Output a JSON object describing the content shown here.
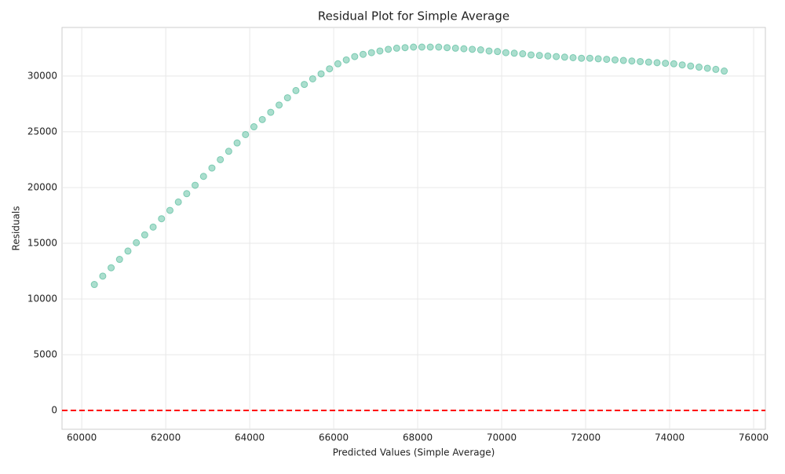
{
  "chart_data": {
    "type": "scatter",
    "title": "Residual Plot for Simple Average",
    "x_label": "Predicted Values (Simple Average)",
    "y_label": "Residuals",
    "color": "#66c2a5",
    "grid": true,
    "xlim": [
      59530,
      76280
    ],
    "ylim": [
      -1690,
      34360
    ],
    "xticks": [
      60000,
      62000,
      64000,
      66000,
      68000,
      70000,
      72000,
      74000,
      76000
    ],
    "yticks": [
      0,
      5000,
      10000,
      15000,
      20000,
      25000,
      30000
    ],
    "hline": {
      "y": 0,
      "color": "#ff0000",
      "style": "dashed"
    },
    "x": [
      60300,
      60500,
      60700,
      60900,
      61100,
      61300,
      61500,
      61700,
      61900,
      62100,
      62300,
      62500,
      62700,
      62900,
      63100,
      63300,
      63500,
      63700,
      63900,
      64100,
      64300,
      64500,
      64700,
      64900,
      65100,
      65300,
      65500,
      65700,
      65900,
      66100,
      66300,
      66500,
      66700,
      66900,
      67100,
      67300,
      67500,
      67700,
      67900,
      68100,
      68300,
      68500,
      68700,
      68900,
      69100,
      69300,
      69500,
      69700,
      69900,
      70100,
      70300,
      70500,
      70700,
      70900,
      71100,
      71300,
      71500,
      71700,
      71900,
      72100,
      72300,
      72500,
      72700,
      72900,
      73100,
      73300,
      73500,
      73700,
      73900,
      74100,
      74300,
      74500,
      74700,
      74900,
      75100,
      75300
    ],
    "values": [
      11300,
      12050,
      12800,
      13550,
      14300,
      15050,
      15750,
      16450,
      17200,
      17950,
      18700,
      19450,
      20200,
      21000,
      21750,
      22500,
      23250,
      24000,
      24750,
      25450,
      26100,
      26750,
      27400,
      28050,
      28700,
      29250,
      29750,
      30200,
      30650,
      31100,
      31450,
      31750,
      31950,
      32100,
      32250,
      32400,
      32500,
      32550,
      32600,
      32600,
      32600,
      32600,
      32550,
      32500,
      32450,
      32400,
      32350,
      32250,
      32200,
      32100,
      32050,
      32000,
      31900,
      31850,
      31800,
      31750,
      31700,
      31650,
      31600,
      31600,
      31550,
      31500,
      31450,
      31400,
      31350,
      31300,
      31250,
      31200,
      31150,
      31100,
      31000,
      30900,
      30800,
      30700,
      30600,
      30450
    ]
  }
}
